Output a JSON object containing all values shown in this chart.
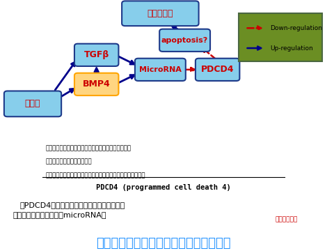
{
  "title": "糖尿病性腎症の早期診断マーカーの探索",
  "title_color": "#1E90FF",
  "author": "（櫻井明子）",
  "subtitle1": "－糖尿病性腎症におけるmicroRNAの",
  "subtitle2": "　PDCD4制御を介した抗アポトーシス効果－",
  "pdcd4_title": "PDCD4 (programmed cell death 4)",
  "pdcd4_bullets": [
    "・腫瘍抑制作用、抗癌治療のターゲット分子と考えられている",
    "・アポトーシスを強める作用",
    "・細胞タイプ・遺伝子の影響に作用すると考えられる"
  ],
  "bg_color": "#FFFFFF",
  "node_bg_blue": "#87CEEB",
  "node_bg_orange": "#FFD580",
  "node_border_blue": "#1E3A8A",
  "node_border_orange": "#FFA500",
  "node_text_color": "#CC0000",
  "arrow_blue": "#00008B",
  "arrow_red": "#CC0000",
  "legend_bg": "#6B8E23",
  "legend_border": "#4A6741"
}
